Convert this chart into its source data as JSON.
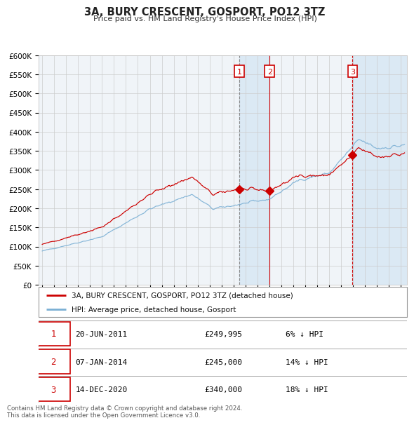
{
  "title": "3A, BURY CRESCENT, GOSPORT, PO12 3TZ",
  "subtitle": "Price paid vs. HM Land Registry's House Price Index (HPI)",
  "red_line_color": "#cc0000",
  "blue_line_color": "#7aafd4",
  "background_color": "#ffffff",
  "plot_bg_color": "#f0f4f8",
  "grid_color": "#cccccc",
  "sale_dates": [
    2011.47,
    2014.02,
    2020.95
  ],
  "sale_prices": [
    249995,
    245000,
    340000
  ],
  "shade_color": "#d8e8f4",
  "legend_entries": [
    {
      "label": "3A, BURY CRESCENT, GOSPORT, PO12 3TZ (detached house)",
      "color": "#cc0000"
    },
    {
      "label": "HPI: Average price, detached house, Gosport",
      "color": "#7aafd4"
    }
  ],
  "table_entries": [
    {
      "num": "1",
      "date": "20-JUN-2011",
      "price": "£249,995",
      "change": "6% ↓ HPI"
    },
    {
      "num": "2",
      "date": "07-JAN-2014",
      "price": "£245,000",
      "change": "14% ↓ HPI"
    },
    {
      "num": "3",
      "date": "14-DEC-2020",
      "price": "£340,000",
      "change": "18% ↓ HPI"
    }
  ],
  "footnote": "Contains HM Land Registry data © Crown copyright and database right 2024.\nThis data is licensed under the Open Government Licence v3.0.",
  "ytick_vals": [
    0,
    50000,
    100000,
    150000,
    200000,
    250000,
    300000,
    350000,
    400000,
    450000,
    500000,
    550000,
    600000
  ],
  "ytick_labels": [
    "£0",
    "£50K",
    "£100K",
    "£150K",
    "£200K",
    "£250K",
    "£300K",
    "£350K",
    "£400K",
    "£450K",
    "£500K",
    "£550K",
    "£600K"
  ]
}
